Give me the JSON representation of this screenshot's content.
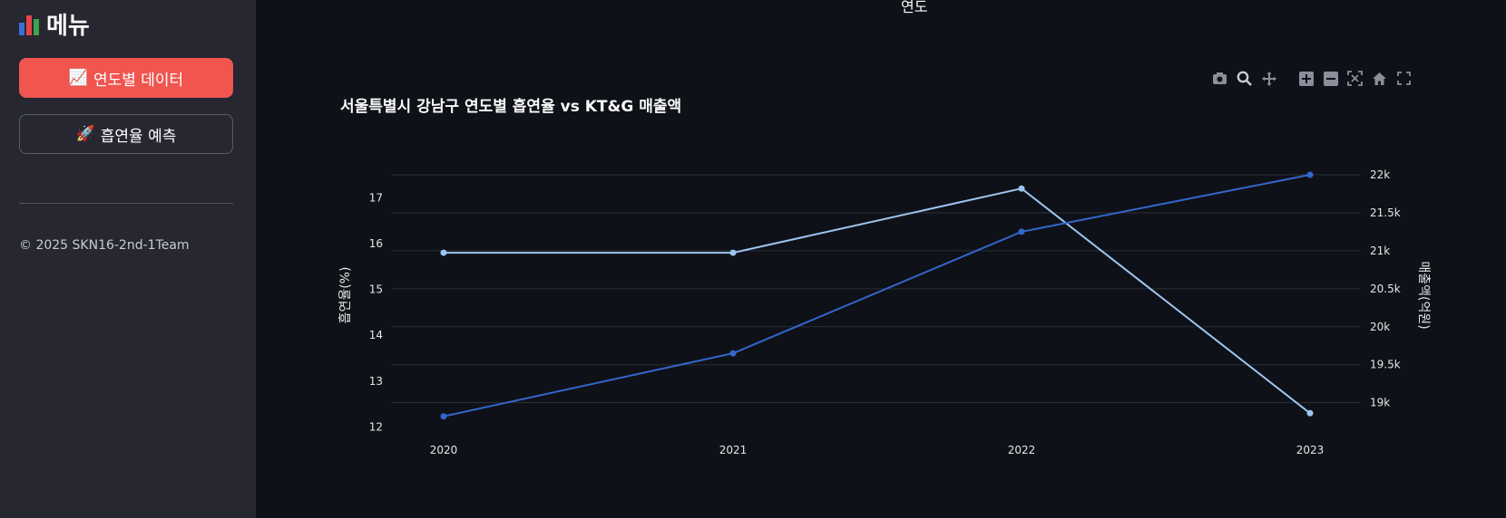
{
  "sidebar": {
    "title": "메뉴",
    "buttons": [
      {
        "icon": "📈",
        "label": "연도별 데이터"
      },
      {
        "icon": "🚀",
        "label": "흡연율 예측"
      }
    ],
    "footer": "© 2025 SKN16-2nd-1Team"
  },
  "main": {
    "top_label": "연도"
  },
  "colors": {
    "background": "#0e1117",
    "sidebar": "#262730",
    "primary_button": "#f0554f",
    "series_smoking": "#9ec5f2",
    "series_revenue": "#3366cc",
    "grid": "#2b2f38"
  },
  "chart_data": {
    "type": "line",
    "title": "서울특별시 강남구 연도별 흡연율 vs KT&G 매출액",
    "x": [
      "2020",
      "2021",
      "2022",
      "2023"
    ],
    "series": [
      {
        "axis": "left",
        "values": [
          15.8,
          15.8,
          17.2,
          12.3
        ],
        "color": "#9ec5f2"
      },
      {
        "axis": "right",
        "values": [
          18.82,
          19.65,
          21.25,
          22.0
        ],
        "color": "#3366cc"
      }
    ],
    "ylabel": "흡연율(%)",
    "y2label": "매출액(억원)",
    "ylim": [
      11.95,
      17.5
    ],
    "y2lim": [
      18.65,
      22.0
    ],
    "yticks": [
      "12",
      "13",
      "14",
      "15",
      "16",
      "17"
    ],
    "y2ticks": [
      "19k",
      "19.5k",
      "20k",
      "20.5k",
      "21k",
      "21.5k",
      "22k"
    ],
    "y2tick_values": [
      19000,
      19500,
      20000,
      20500,
      21000,
      21500,
      22000
    ],
    "grid": true
  }
}
